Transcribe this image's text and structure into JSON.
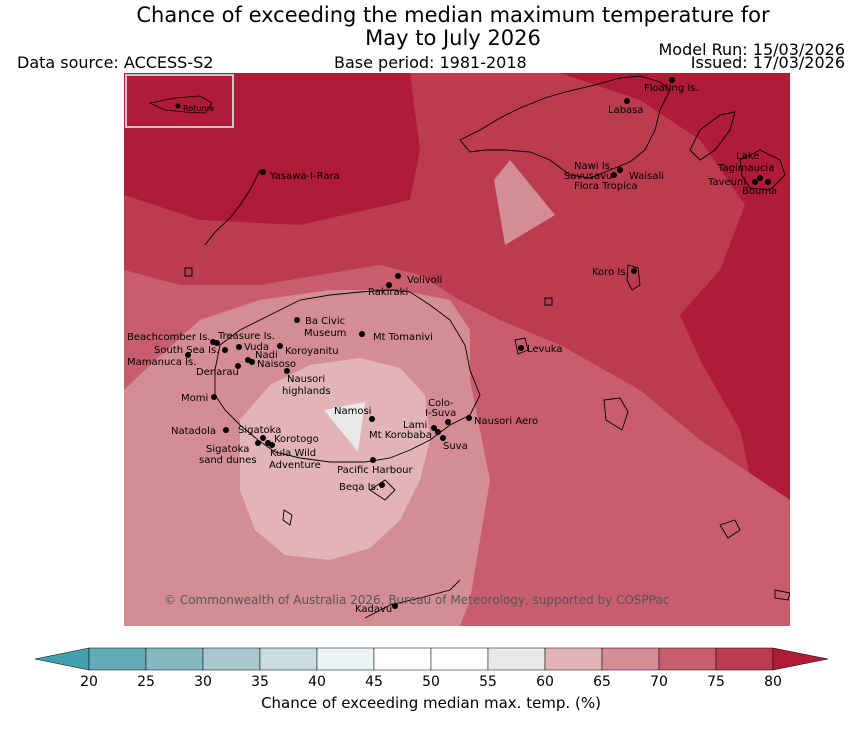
{
  "title": {
    "line1": "Chance of exceeding the median maximum temperature for",
    "line2": "May to July 2026"
  },
  "header": {
    "data_source": "Data source: ACCESS-S2",
    "base_period": "Base period: 1981-2018",
    "model_run": "Model Run: 15/03/2026",
    "issued": "Issued: 17/03/2026"
  },
  "map": {
    "copyright": "© Commonwealth of Australia 2026, Bureau of Meteorology, supported by COSPPac",
    "inset_label": "Rotuma",
    "places": [
      "Floating Is.",
      "Labasa",
      "Yasawa-I-Rara",
      "Nawi Is.",
      "Savusavu",
      "Waisali",
      "Flora Tropica",
      "Lake",
      "Tagimaucia",
      "Taveuni",
      "Bouma",
      "Volivoli",
      "Rakiraki",
      "Koro Is.",
      "Ba Civic",
      "Museum",
      "Mt Tomanivi",
      "Beachcomber Is.",
      "Treasure Is.",
      "South Sea Is.",
      "Vuda",
      "Koroyanitu",
      "Nadi",
      "Naisoso",
      "Mamanuca Is.",
      "Denarau",
      "Nausori",
      "highlands",
      "Levuka",
      "Momi",
      "Namosi",
      "Colo-",
      "I-Suva",
      "Lami",
      "Nausori Aero",
      "Mt Korobaba",
      "Suva",
      "Natadola",
      "Sigatoka",
      "Korotogo",
      "Sigatoka",
      "sand dunes",
      "Kula Wild",
      "Adventure",
      "Pacific Harbour",
      "Beqa Is.",
      "Kadavu"
    ]
  },
  "colorbar": {
    "ticks": [
      "20",
      "25",
      "30",
      "35",
      "40",
      "45",
      "50",
      "55",
      "60",
      "65",
      "70",
      "75",
      "80"
    ],
    "colors": [
      "#44a0ae",
      "#62aab8",
      "#85b7c2",
      "#a7c9ce",
      "#c9dcdf",
      "#ebf2f3",
      "#ffffff",
      "#ffffff",
      "#e9e9e8",
      "#e2b4b8",
      "#d58d95",
      "#c85e6d",
      "#bb3c4f",
      "#b01c38"
    ],
    "label": "Chance of exceeding median max. temp. (%)"
  },
  "chart_data": {
    "type": "heatmap",
    "title": "Chance of exceeding the median maximum temperature for May to July 2026",
    "colorbar_label": "Chance of exceeding median max. temp. (%)",
    "colorbar_range": [
      20,
      80
    ],
    "colorbar_ticks": [
      20,
      25,
      30,
      35,
      40,
      45,
      50,
      55,
      60,
      65,
      70,
      75,
      80
    ],
    "legend": "colorbar-bottom"
  }
}
